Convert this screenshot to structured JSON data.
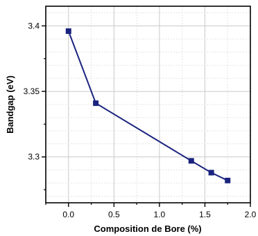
{
  "chart_data": {
    "type": "line",
    "title": "",
    "xlabel": "Composition de Bore (%)",
    "ylabel": "Bandgap (eV)",
    "xlim": [
      -0.25,
      2.0
    ],
    "ylim": [
      3.265,
      3.415
    ],
    "x_ticks": [
      0.0,
      0.5,
      1.0,
      1.5,
      2.0
    ],
    "x_tick_labels": [
      "0.0",
      "0.5",
      "1.0",
      "1.5",
      "2.0"
    ],
    "y_ticks": [
      3.3,
      3.35,
      3.4
    ],
    "y_tick_labels": [
      "3.3",
      "3.35",
      "3.4"
    ],
    "grid": true,
    "series": [
      {
        "color": "#1a237e",
        "marker": "square",
        "x": [
          0.0,
          0.3,
          1.35,
          1.57,
          1.75
        ],
        "y": [
          3.396,
          3.341,
          3.297,
          3.288,
          3.282
        ]
      }
    ]
  }
}
